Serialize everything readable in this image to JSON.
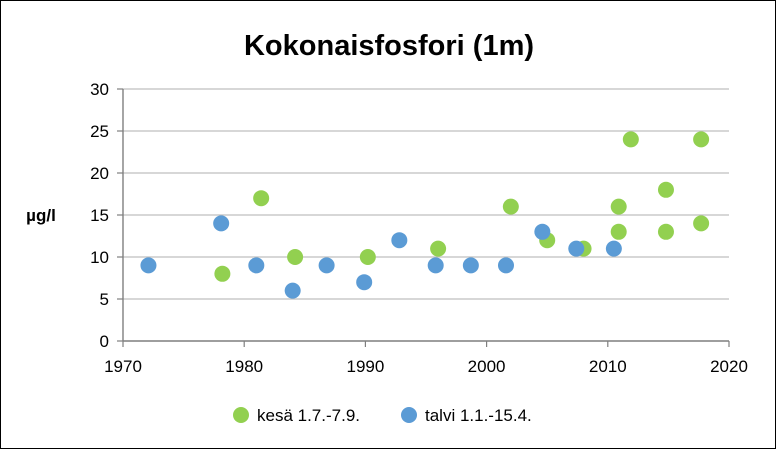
{
  "chart_data": {
    "type": "scatter",
    "title": "Kokonaisfosfori (1m)",
    "xlabel": "",
    "ylabel": "µg/l",
    "xlim": [
      1970,
      2020
    ],
    "ylim": [
      0,
      30
    ],
    "xticks": [
      1970,
      1980,
      1990,
      2000,
      2010,
      2020
    ],
    "yticks": [
      0,
      5,
      10,
      15,
      20,
      25,
      30
    ],
    "grid": "horizontal",
    "legend_position": "bottom",
    "series": [
      {
        "name": "kesä 1.7.-7.9.",
        "color": "#92D050",
        "points": [
          {
            "x": 1978.2,
            "y": 8
          },
          {
            "x": 1981.4,
            "y": 17
          },
          {
            "x": 1984.2,
            "y": 10
          },
          {
            "x": 1990.2,
            "y": 10
          },
          {
            "x": 1996.0,
            "y": 11
          },
          {
            "x": 2002.0,
            "y": 16
          },
          {
            "x": 2005.0,
            "y": 12
          },
          {
            "x": 2008.0,
            "y": 11
          },
          {
            "x": 2010.9,
            "y": 16
          },
          {
            "x": 2010.9,
            "y": 13
          },
          {
            "x": 2011.9,
            "y": 24
          },
          {
            "x": 2014.8,
            "y": 18
          },
          {
            "x": 2014.8,
            "y": 13
          },
          {
            "x": 2017.7,
            "y": 14
          },
          {
            "x": 2017.7,
            "y": 24
          }
        ]
      },
      {
        "name": "talvi 1.1.-15.4.",
        "color": "#5B9BD5",
        "points": [
          {
            "x": 1972.1,
            "y": 9
          },
          {
            "x": 1978.1,
            "y": 14
          },
          {
            "x": 1981.0,
            "y": 9
          },
          {
            "x": 1984.0,
            "y": 6
          },
          {
            "x": 1986.8,
            "y": 9
          },
          {
            "x": 1989.9,
            "y": 7
          },
          {
            "x": 1992.8,
            "y": 12
          },
          {
            "x": 1995.8,
            "y": 9
          },
          {
            "x": 1998.7,
            "y": 9
          },
          {
            "x": 2001.6,
            "y": 9
          },
          {
            "x": 2004.6,
            "y": 13
          },
          {
            "x": 2007.4,
            "y": 11
          },
          {
            "x": 2010.5,
            "y": 11
          }
        ]
      }
    ]
  }
}
